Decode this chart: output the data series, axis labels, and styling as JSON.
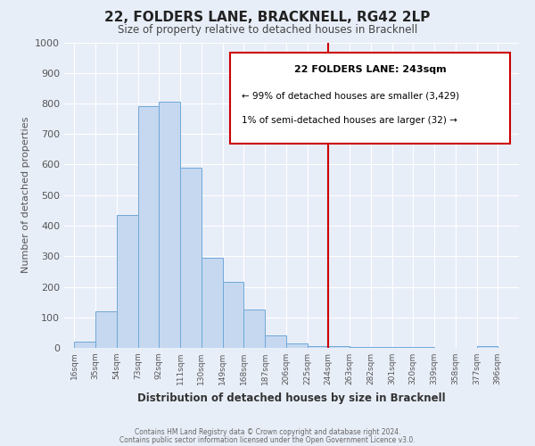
{
  "title": "22, FOLDERS LANE, BRACKNELL, RG42 2LP",
  "subtitle": "Size of property relative to detached houses in Bracknell",
  "xlabel": "Distribution of detached houses by size in Bracknell",
  "ylabel": "Number of detached properties",
  "bin_labels": [
    "16sqm",
    "35sqm",
    "54sqm",
    "73sqm",
    "92sqm",
    "111sqm",
    "130sqm",
    "149sqm",
    "168sqm",
    "187sqm",
    "206sqm",
    "225sqm",
    "244sqm",
    "263sqm",
    "282sqm",
    "301sqm",
    "320sqm",
    "339sqm",
    "358sqm",
    "377sqm",
    "396sqm"
  ],
  "bar_heights": [
    20,
    120,
    435,
    790,
    805,
    590,
    295,
    215,
    125,
    40,
    15,
    5,
    5,
    3,
    3,
    2,
    2,
    1,
    1,
    5
  ],
  "bin_edges": [
    16,
    35,
    54,
    73,
    92,
    111,
    130,
    149,
    168,
    187,
    206,
    225,
    244,
    263,
    282,
    301,
    320,
    339,
    358,
    377,
    396
  ],
  "bar_color": "#c5d8f0",
  "bar_edge_color": "#6fa8d8",
  "vline_x": 244,
  "vline_color": "#cc0000",
  "ylim": [
    0,
    1000
  ],
  "yticks": [
    0,
    100,
    200,
    300,
    400,
    500,
    600,
    700,
    800,
    900,
    1000
  ],
  "annotation_title": "22 FOLDERS LANE: 243sqm",
  "annotation_line1": "← 99% of detached houses are smaller (3,429)",
  "annotation_line2": "1% of semi-detached houses are larger (32) →",
  "annotation_box_color": "#ffffff",
  "annotation_border_color": "#cc0000",
  "footer_line1": "Contains HM Land Registry data © Crown copyright and database right 2024.",
  "footer_line2": "Contains public sector information licensed under the Open Government Licence v3.0.",
  "background_color": "#e8eef8",
  "plot_bg_color": "#e8eef8",
  "grid_color": "#ffffff",
  "xlim_left": 7,
  "xlim_right": 415
}
